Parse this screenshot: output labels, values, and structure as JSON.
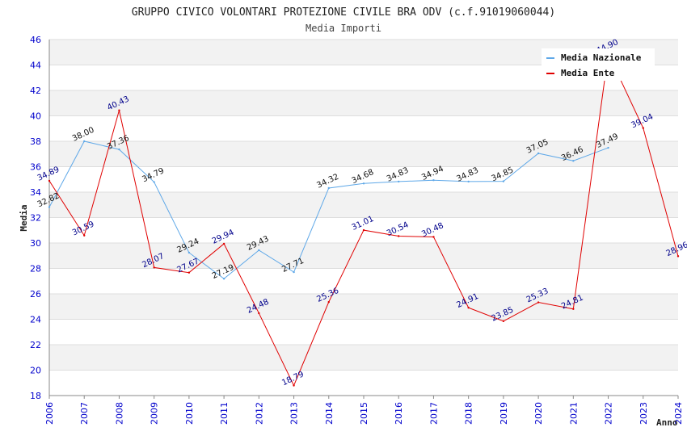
{
  "chart_data": {
    "type": "line",
    "title": "GRUPPO CIVICO VOLONTARI PROTEZIONE CIVILE BRA ODV (c.f.91019060044)",
    "subtitle": "Media Importi",
    "xlabel": "Anno",
    "ylabel": "Media",
    "ylim": [
      18,
      46
    ],
    "yticks": [
      18,
      20,
      22,
      24,
      26,
      28,
      30,
      32,
      34,
      36,
      38,
      40,
      42,
      44,
      46
    ],
    "x": [
      "2006",
      "2007",
      "2008",
      "2009",
      "2010",
      "2011",
      "2012",
      "2013",
      "2014",
      "2015",
      "2016",
      "2017",
      "2018",
      "2019",
      "2020",
      "2021",
      "2022",
      "2023",
      "2024"
    ],
    "legend_position": "top-right",
    "grid": true,
    "series": [
      {
        "name": "Media Nazionale",
        "color": "#5fa8e8",
        "label_color": "#111111",
        "values": [
          32.82,
          38.0,
          37.36,
          34.79,
          29.24,
          27.19,
          29.43,
          27.71,
          34.32,
          34.68,
          34.83,
          34.94,
          34.83,
          34.85,
          37.05,
          36.46,
          37.49,
          null,
          null
        ],
        "labels": [
          "32.82",
          "38.00",
          "37.36",
          "34.79",
          "29.24",
          "27.19",
          "29.43",
          "27.71",
          "34.32",
          "34.68",
          "34.83",
          "34.94",
          "34.83",
          "34.85",
          "37.05",
          "36.46",
          "37.49",
          null,
          null
        ]
      },
      {
        "name": "Media Ente",
        "color": "#e00000",
        "label_color": "#00008b",
        "values": [
          34.89,
          30.59,
          40.43,
          28.07,
          27.67,
          29.94,
          24.48,
          18.79,
          25.36,
          31.01,
          30.54,
          30.48,
          24.91,
          23.85,
          25.33,
          24.81,
          44.9,
          39.04,
          28.96
        ],
        "labels": [
          "34.89",
          "30.59",
          "40.43",
          "28.07",
          "27.67",
          "29.94",
          "24.48",
          "18.79",
          "25.36",
          "31.01",
          "30.54",
          "30.48",
          "24.91",
          "23.85",
          "25.33",
          "24.81",
          "44.90",
          "39.04",
          "28.96"
        ]
      }
    ]
  }
}
